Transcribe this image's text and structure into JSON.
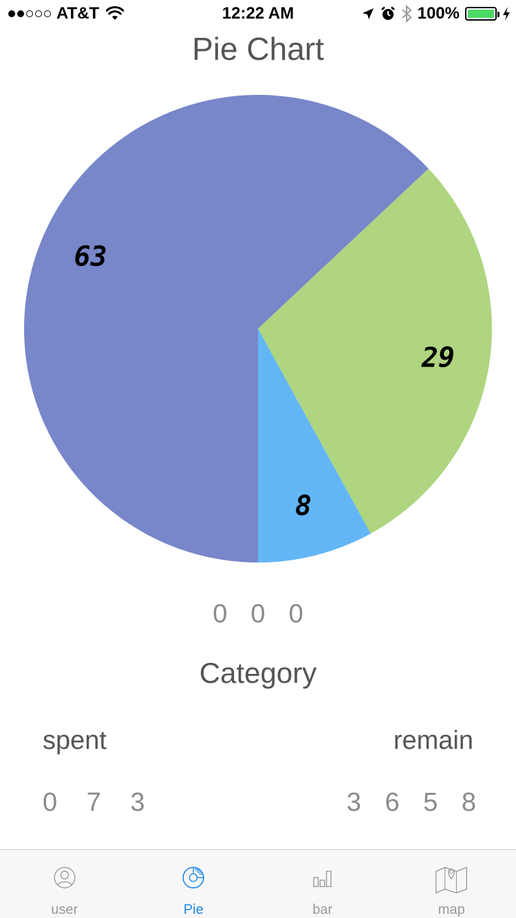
{
  "status_bar": {
    "carrier": "AT&T",
    "time": "12:22 AM",
    "battery_percent": "100%",
    "signal_bars_filled": 2,
    "signal_bars_total": 5,
    "battery_level": 1.0,
    "battery_color": "#4cd964",
    "icons": [
      "wifi-icon",
      "location-arrow-icon",
      "alarm-icon",
      "bluetooth-icon",
      "battery-icon",
      "charging-bolt-icon"
    ]
  },
  "header": {
    "title": "Pie Chart"
  },
  "chart_data": {
    "type": "pie",
    "slices": [
      {
        "label": "63",
        "value": 63,
        "color": "#7886ca"
      },
      {
        "label": "29",
        "value": 29,
        "color": "#afd580"
      },
      {
        "label": "8",
        "value": 8,
        "color": "#63b6f6"
      }
    ],
    "start_angle_deg": 180,
    "direction": "clockwise"
  },
  "legend_values": [
    "0",
    "0",
    "0"
  ],
  "category_label": "Category",
  "summary": {
    "spent_label": "spent",
    "remain_label": "remain",
    "spent_value": "0 7 3",
    "remain_value": "3 6 5 8"
  },
  "tab_bar": {
    "active_color": "#1e88e5",
    "inactive_color": "#999999",
    "tabs": [
      {
        "label": "user",
        "icon": "user-icon",
        "active": false
      },
      {
        "label": "Pie",
        "icon": "pie-chart-icon",
        "active": true
      },
      {
        "label": "bar",
        "icon": "bar-chart-icon",
        "active": false
      },
      {
        "label": "map",
        "icon": "map-icon",
        "active": false
      }
    ]
  }
}
